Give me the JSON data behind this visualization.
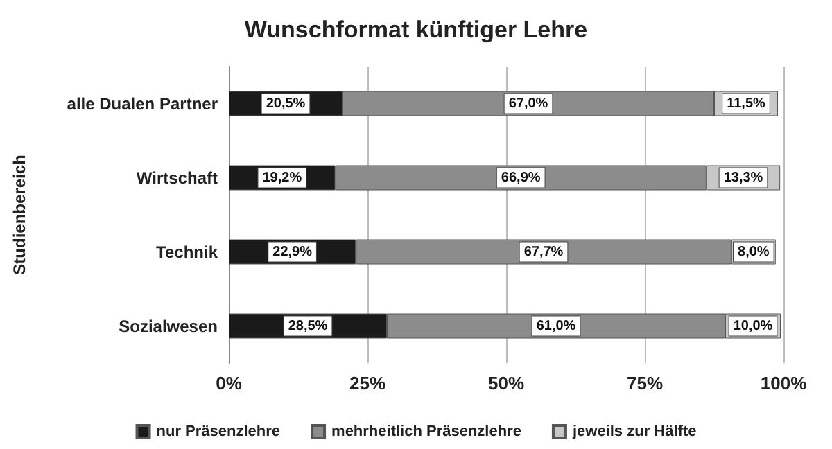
{
  "chart_data": {
    "type": "bar",
    "orientation": "horizontal",
    "stacked": true,
    "title": "Wunschformat künftiger Lehre",
    "ylabel": "Studienbereich",
    "categories": [
      "alle Dualen Partner",
      "Wirtschaft",
      "Technik",
      "Sozialwesen"
    ],
    "series": [
      {
        "name": "nur Präsenzlehre",
        "color": "#1a1a1a",
        "values": [
          20.5,
          19.2,
          22.9,
          28.5
        ],
        "value_labels": [
          "20,5%",
          "19,2%",
          "22,9%",
          "28,5%"
        ]
      },
      {
        "name": "mehrheitlich Präsenzlehre",
        "color": "#8c8c8c",
        "values": [
          67.0,
          66.9,
          67.7,
          61.0
        ],
        "value_labels": [
          "67,0%",
          "66,9%",
          "67,7%",
          "61,0%"
        ]
      },
      {
        "name": "jeweils zur Hälfte",
        "color": "#c8c8c8",
        "values": [
          11.5,
          13.3,
          8.0,
          10.0
        ],
        "value_labels": [
          "11,5%",
          "13,3%",
          "8,0%",
          "10,0%"
        ]
      }
    ],
    "xlim": [
      0,
      100
    ],
    "xticks": [
      {
        "value": 0,
        "label": "0%"
      },
      {
        "value": 25,
        "label": "25%"
      },
      {
        "value": 50,
        "label": "50%"
      },
      {
        "value": 75,
        "label": "75%"
      },
      {
        "value": 100,
        "label": "100%"
      }
    ],
    "grid": "x",
    "legend": "bottom"
  }
}
